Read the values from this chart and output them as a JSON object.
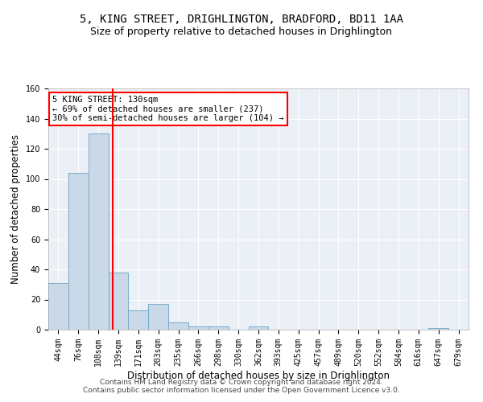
{
  "title1": "5, KING STREET, DRIGHLINGTON, BRADFORD, BD11 1AA",
  "title2": "Size of property relative to detached houses in Drighlington",
  "xlabel": "Distribution of detached houses by size in Drighlington",
  "ylabel": "Number of detached properties",
  "footer": "Contains HM Land Registry data © Crown copyright and database right 2024.\nContains public sector information licensed under the Open Government Licence v3.0.",
  "bin_labels": [
    "44sqm",
    "76sqm",
    "108sqm",
    "139sqm",
    "171sqm",
    "203sqm",
    "235sqm",
    "266sqm",
    "298sqm",
    "330sqm",
    "362sqm",
    "393sqm",
    "425sqm",
    "457sqm",
    "489sqm",
    "520sqm",
    "552sqm",
    "584sqm",
    "616sqm",
    "647sqm",
    "679sqm"
  ],
  "bar_values": [
    31,
    104,
    130,
    38,
    13,
    17,
    5,
    2,
    2,
    0,
    2,
    0,
    0,
    0,
    0,
    0,
    0,
    0,
    0,
    1,
    0
  ],
  "bar_color": "#c9d9e8",
  "bar_edge_color": "#7baac9",
  "red_line_x": 2.72,
  "annotation_text": "5 KING STREET: 130sqm\n← 69% of detached houses are smaller (237)\n30% of semi-detached houses are larger (104) →",
  "annotation_box_color": "white",
  "annotation_box_edge": "red",
  "ylim": [
    0,
    160
  ],
  "yticks": [
    0,
    20,
    40,
    60,
    80,
    100,
    120,
    140,
    160
  ],
  "background_color": "#eaf0f6",
  "grid_color": "white",
  "title_fontsize": 10,
  "subtitle_fontsize": 9,
  "axis_label_fontsize": 8.5,
  "tick_fontsize": 7,
  "footer_fontsize": 6.5,
  "annot_fontsize": 7.5
}
